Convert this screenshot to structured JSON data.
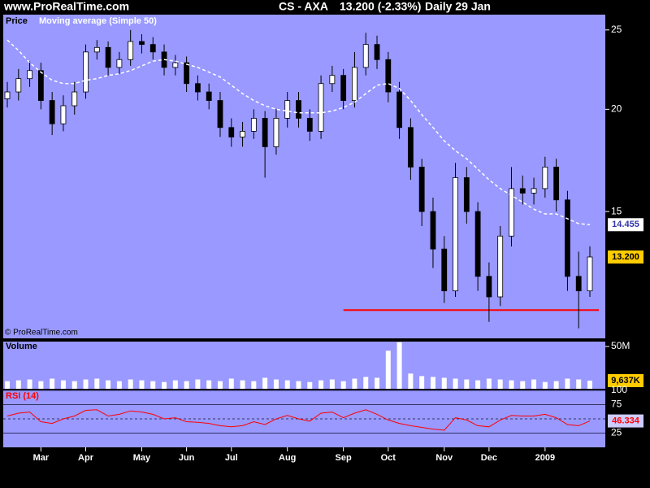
{
  "header": {
    "site": "www.ProRealTime.com",
    "instrument": "CS - AXA",
    "quote": "13.200 (-2.33%)",
    "period": "Daily  29 Jan"
  },
  "chart_data": [
    {
      "type": "candlestick",
      "title": "Price",
      "indicator": {
        "name": "Moving average (Simple 50)",
        "color": "#ffffff",
        "values": [
          24.3,
          23.6,
          22.8,
          22.2,
          21.7,
          21.5,
          21.5,
          21.7,
          21.8,
          22.0,
          22.1,
          22.3,
          22.6,
          22.9,
          23.0,
          22.9,
          22.7,
          22.5,
          22.2,
          21.9,
          21.4,
          20.9,
          20.5,
          20.2,
          20.0,
          19.9,
          19.8,
          19.8,
          19.8,
          19.9,
          20.1,
          20.4,
          20.9,
          21.4,
          21.5,
          21.2,
          20.5,
          19.7,
          19.0,
          18.3,
          17.8,
          17.4,
          16.9,
          16.4,
          16.0,
          15.7,
          15.4,
          15.1,
          14.9,
          14.9,
          14.7,
          14.5,
          14.455
        ]
      },
      "open": [
        20.6,
        21.0,
        21.8,
        22.3,
        20.5,
        19.2,
        20.2,
        21.0,
        23.5,
        23.8,
        22.5,
        23.0,
        24.2,
        24.0,
        23.5,
        22.5,
        22.8,
        21.5,
        21.0,
        20.5,
        19.0,
        18.5,
        18.8,
        19.5,
        18.0,
        19.5,
        20.5,
        19.5,
        18.8,
        21.5,
        22.0,
        20.5,
        22.5,
        24.0,
        23.0,
        21.0,
        19.0,
        17.0,
        15.0,
        13.5,
        12.0,
        16.5,
        15.0,
        12.5,
        11.8,
        14.0,
        16.0,
        15.8,
        16.0,
        17.0,
        15.5,
        12.5,
        12.0
      ],
      "high": [
        21.6,
        22.4,
        22.9,
        22.8,
        21.0,
        20.8,
        21.6,
        24.0,
        24.3,
        24.2,
        23.5,
        25.0,
        24.7,
        24.5,
        24.0,
        23.3,
        23.2,
        22.0,
        21.5,
        21.0,
        19.5,
        19.3,
        20.0,
        19.9,
        20.0,
        21.0,
        21.0,
        20.0,
        22.0,
        22.6,
        22.4,
        23.5,
        24.8,
        24.6,
        23.5,
        21.6,
        19.5,
        17.4,
        15.6,
        14.0,
        17.2,
        17.0,
        15.4,
        13.0,
        14.4,
        17.0,
        16.6,
        16.5,
        17.5,
        17.4,
        15.9,
        13.4,
        13.6
      ],
      "low": [
        20.1,
        20.5,
        21.3,
        20.0,
        18.6,
        18.8,
        19.7,
        20.6,
        23.0,
        22.0,
        22.1,
        22.6,
        23.4,
        23.0,
        22.0,
        22.0,
        21.0,
        20.5,
        20.0,
        18.5,
        18.0,
        18.0,
        18.4,
        16.5,
        17.6,
        19.0,
        19.0,
        18.3,
        18.4,
        21.0,
        20.0,
        20.1,
        22.0,
        22.4,
        20.4,
        18.4,
        16.4,
        14.4,
        12.8,
        11.6,
        11.8,
        14.5,
        12.0,
        11.0,
        11.5,
        13.6,
        15.3,
        15.3,
        15.6,
        15.0,
        12.0,
        10.8,
        11.8
      ],
      "close": [
        21.0,
        21.8,
        22.3,
        20.5,
        19.2,
        20.2,
        21.0,
        23.5,
        23.8,
        22.5,
        23.0,
        24.2,
        24.0,
        23.5,
        22.5,
        22.8,
        21.5,
        21.0,
        20.5,
        19.0,
        18.5,
        18.8,
        19.5,
        18.0,
        19.5,
        20.5,
        19.5,
        18.8,
        21.5,
        22.0,
        20.5,
        22.5,
        24.0,
        23.0,
        21.0,
        19.0,
        17.0,
        15.0,
        13.5,
        12.0,
        16.5,
        15.0,
        12.5,
        11.8,
        14.0,
        16.0,
        15.8,
        16.0,
        17.0,
        15.5,
        12.5,
        12.0,
        13.2
      ],
      "close_label": "13.200",
      "support_level": 11.37,
      "support_color": "#ff0000",
      "ylim": [
        10.5,
        26.1
      ],
      "yticks": [
        15,
        20,
        25
      ],
      "log_scale": true,
      "color": "#9999ff",
      "credit": "© ProRealTime.com"
    },
    {
      "type": "bar",
      "title": "Volume",
      "values": [
        9000000,
        10000000,
        11000000,
        9000000,
        12000000,
        10000000,
        9000000,
        11000000,
        12000000,
        10000000,
        9000000,
        11000000,
        10000000,
        9000000,
        8000000,
        10000000,
        9000000,
        11000000,
        10000000,
        9000000,
        12000000,
        10000000,
        9000000,
        13000000,
        11000000,
        10000000,
        9000000,
        8000000,
        10000000,
        11000000,
        9000000,
        12000000,
        14000000,
        13000000,
        45000000,
        55000000,
        18000000,
        15000000,
        14000000,
        13000000,
        12000000,
        11000000,
        10000000,
        12000000,
        11000000,
        10000000,
        9000000,
        11000000,
        8000000,
        9000000,
        12000000,
        11000000,
        9637000
      ],
      "last_label": "9,637K",
      "ylim": [
        0,
        55800000
      ],
      "yticks": [
        {
          "value": 50000000,
          "label": "50M"
        }
      ],
      "color": "#ffffff"
    },
    {
      "type": "line",
      "title": "RSI (14)",
      "categories": [
        null,
        null,
        null,
        "Mar",
        null,
        null,
        null,
        "Apr",
        null,
        null,
        null,
        null,
        "May",
        null,
        null,
        null,
        "Jun",
        null,
        null,
        null,
        "Jul",
        null,
        null,
        null,
        null,
        "Aug",
        null,
        null,
        null,
        null,
        "Sep",
        null,
        null,
        null,
        "Oct",
        null,
        null,
        null,
        null,
        "Nov",
        null,
        null,
        null,
        "Dec",
        null,
        null,
        null,
        null,
        "2009",
        null,
        null,
        null,
        null
      ],
      "values": [
        55,
        60,
        62,
        45,
        42,
        50,
        55,
        65,
        66,
        55,
        58,
        64,
        62,
        58,
        50,
        52,
        45,
        44,
        42,
        38,
        36,
        38,
        45,
        40,
        50,
        56,
        50,
        46,
        60,
        62,
        52,
        60,
        66,
        58,
        48,
        42,
        38,
        35,
        32,
        30,
        52,
        48,
        38,
        36,
        48,
        56,
        55,
        55,
        58,
        52,
        40,
        38,
        46.334
      ],
      "midline": 50,
      "ylim": [
        0,
        100
      ],
      "yticks": [
        100,
        75,
        25
      ],
      "color": "#ff0000"
    }
  ]
}
